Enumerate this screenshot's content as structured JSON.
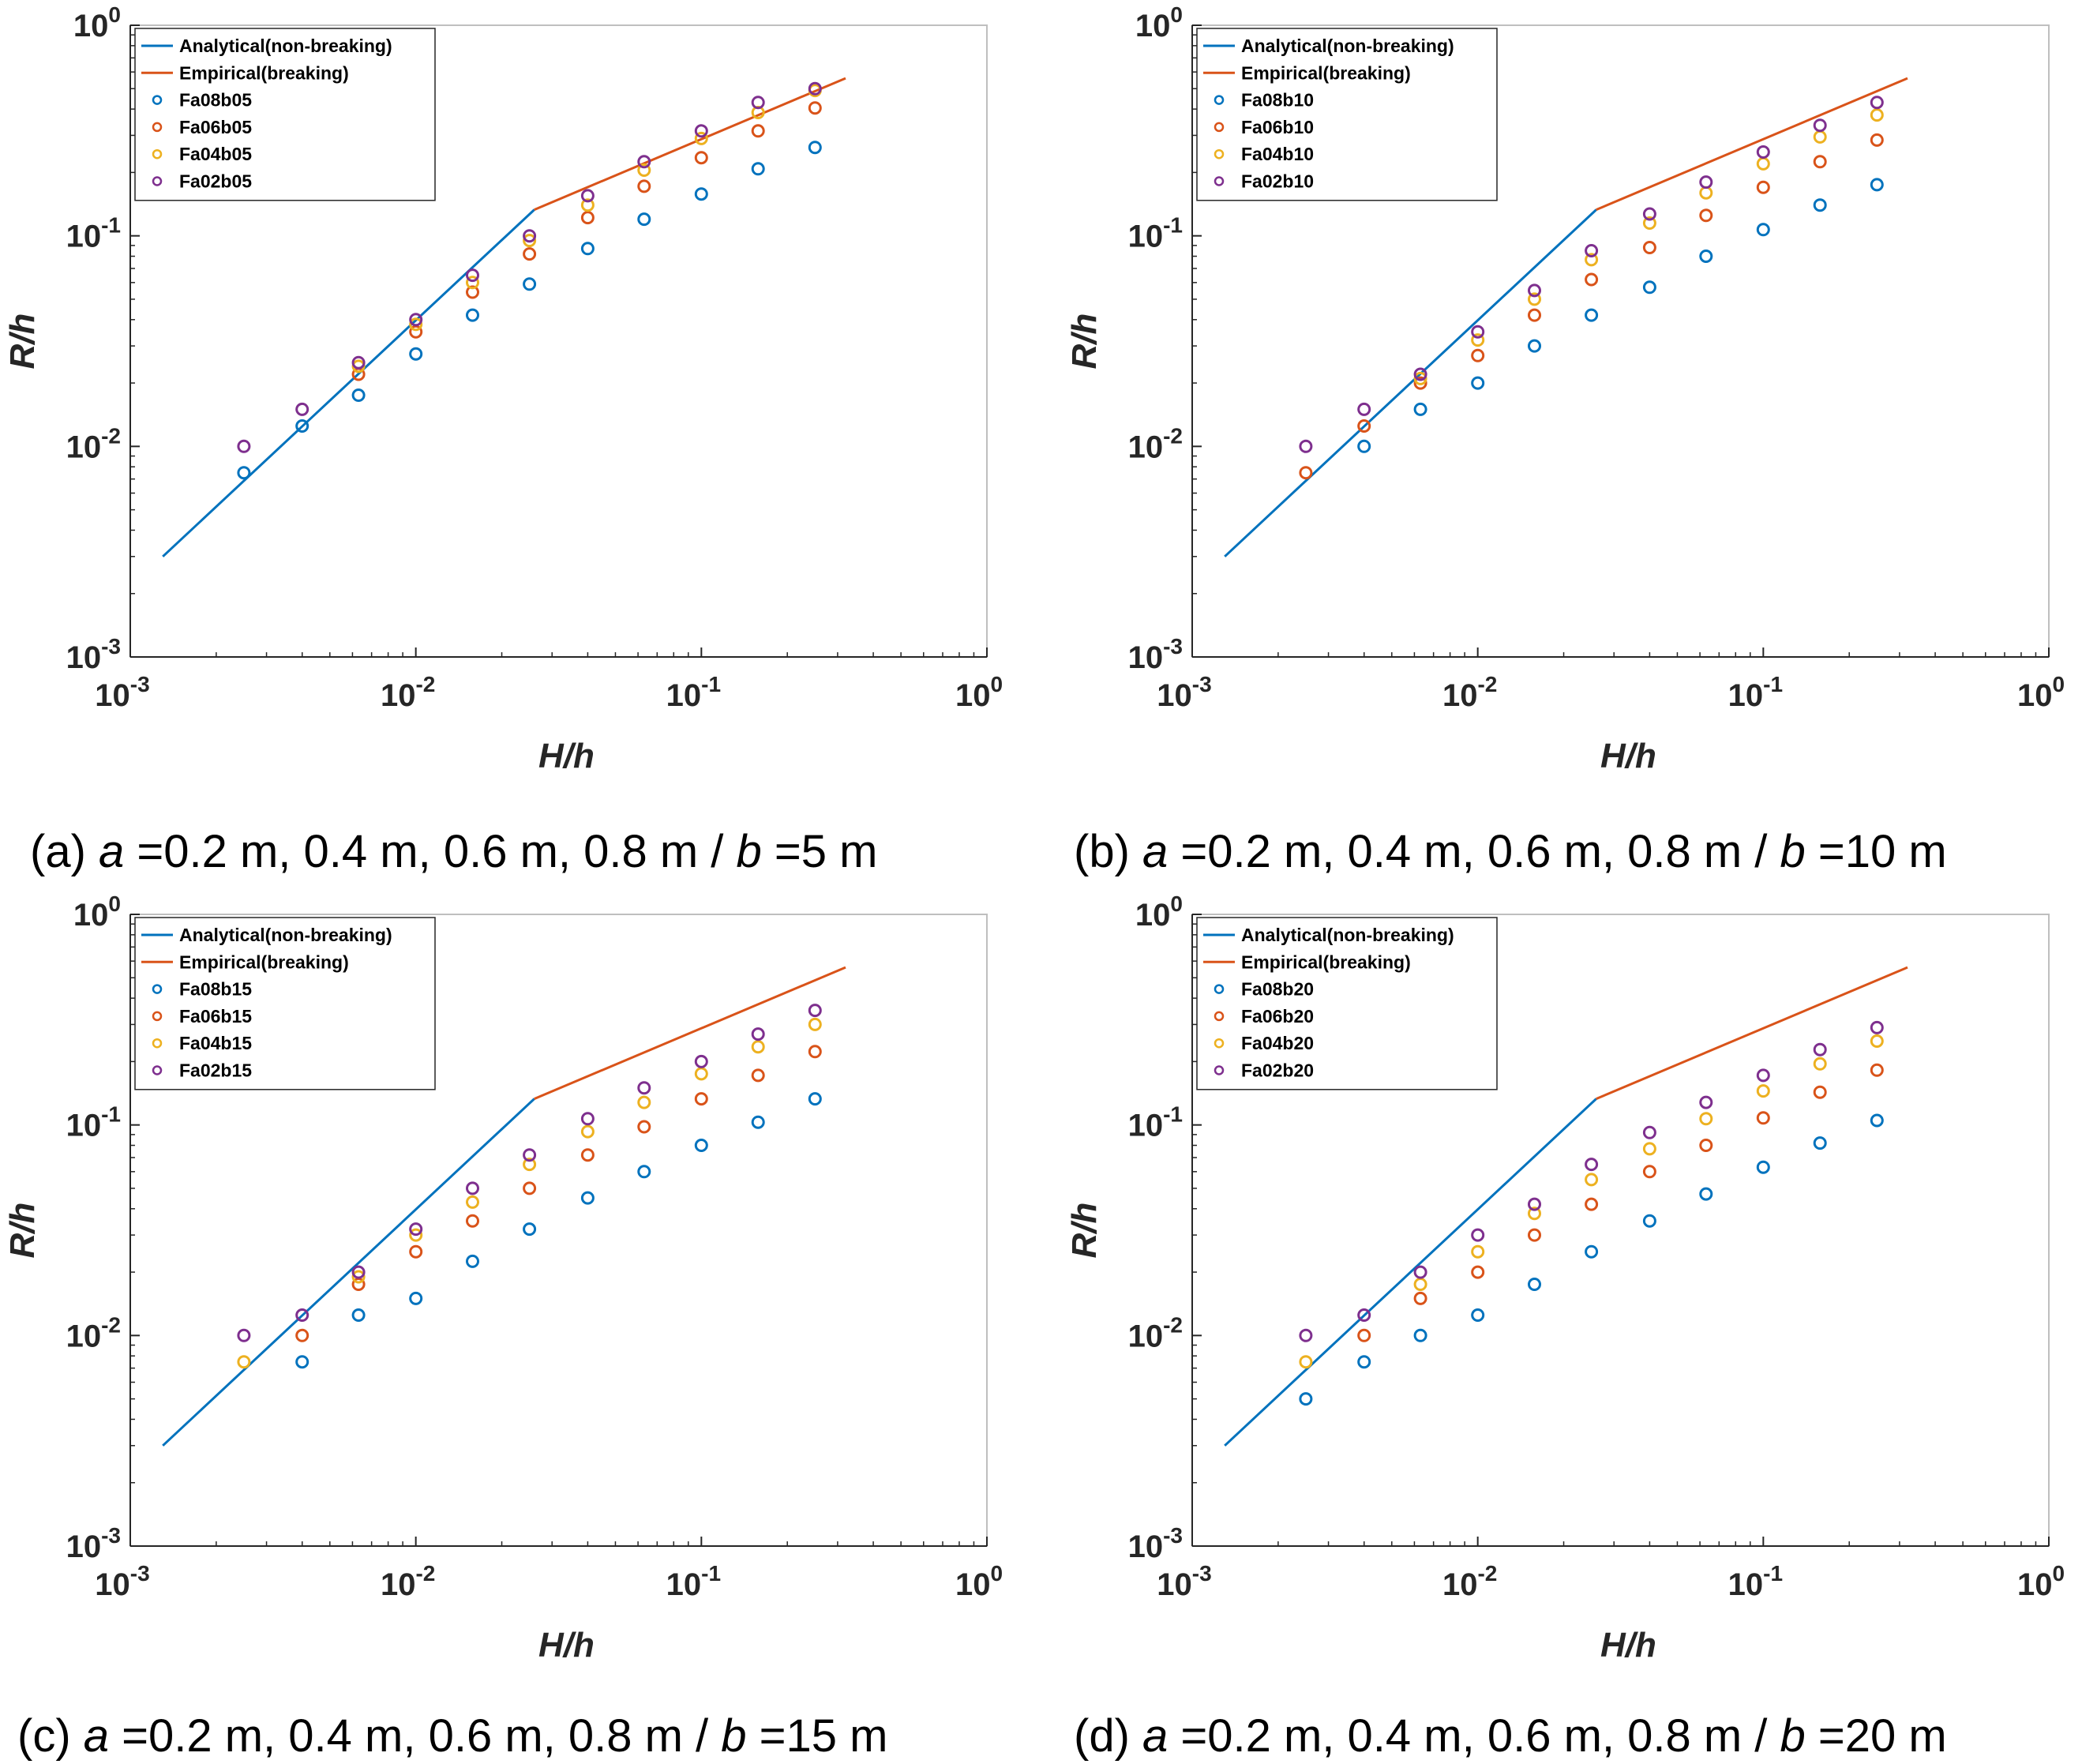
{
  "colors": {
    "analytical": "#0072BD",
    "empirical": "#D95319",
    "fa08": "#0072BD",
    "fa06": "#D95319",
    "fa04": "#EDB120",
    "fa02": "#7E2F8E",
    "axis": "#262626",
    "box": "#bfbfbf"
  },
  "chart_data": [
    {
      "type": "scatter",
      "panel": "a",
      "xscale": "log",
      "yscale": "log",
      "xlim": [
        0.001,
        1
      ],
      "ylim": [
        0.001,
        1
      ],
      "xlabel": "H/h",
      "ylabel": "R/h",
      "x_ticks": [
        "10^-3",
        "10^-2",
        "10^-1",
        "10^0"
      ],
      "y_ticks": [
        "10^-3",
        "10^-2",
        "10^-1",
        "10^0"
      ],
      "legend": "top-left",
      "caption": {
        "prefix": "(a) ",
        "a_sym": "a",
        "middle": " =0.2 m, 0.4 m, 0.6 m, 0.8 m / ",
        "b_sym": "b",
        "suffix": " =5 m"
      },
      "lines": [
        {
          "name": "Analytical(non-breaking)",
          "color_key": "analytical",
          "points": [
            [
              0.0013,
              0.003
            ],
            [
              0.026,
              0.133
            ]
          ]
        },
        {
          "name": "Empirical(breaking)",
          "color_key": "empirical",
          "points": [
            [
              0.026,
              0.133
            ],
            [
              0.32,
              0.56
            ]
          ]
        }
      ],
      "x": [
        0.0025,
        0.004,
        0.0063,
        0.01,
        0.0158,
        0.025,
        0.04,
        0.063,
        0.1,
        0.158,
        0.25
      ],
      "series": [
        {
          "name": "Fa08b05",
          "color_key": "fa08",
          "values": [
            0.0075,
            0.0125,
            0.0175,
            0.0275,
            0.042,
            0.059,
            0.087,
            0.12,
            0.158,
            0.208,
            0.263
          ]
        },
        {
          "name": "Fa06b05",
          "color_key": "fa06",
          "values": [
            null,
            null,
            0.022,
            0.035,
            0.054,
            0.082,
            0.122,
            0.172,
            0.235,
            0.315,
            0.405
          ]
        },
        {
          "name": "Fa04b05",
          "color_key": "fa04",
          "values": [
            null,
            null,
            0.024,
            0.038,
            0.06,
            0.095,
            0.14,
            0.205,
            0.29,
            0.385,
            0.49
          ]
        },
        {
          "name": "Fa02b05",
          "color_key": "fa02",
          "values": [
            0.01,
            0.015,
            0.025,
            0.04,
            0.065,
            0.1,
            0.155,
            0.225,
            0.315,
            0.43,
            0.5
          ]
        }
      ]
    },
    {
      "type": "scatter",
      "panel": "b",
      "xscale": "log",
      "yscale": "log",
      "xlim": [
        0.001,
        1
      ],
      "ylim": [
        0.001,
        1
      ],
      "xlabel": "H/h",
      "ylabel": "R/h",
      "x_ticks": [
        "10^-3",
        "10^-2",
        "10^-1",
        "10^0"
      ],
      "y_ticks": [
        "10^-3",
        "10^-2",
        "10^-1",
        "10^0"
      ],
      "legend": "top-left",
      "caption": {
        "prefix": "(b) ",
        "a_sym": "a",
        "middle": " =0.2 m, 0.4 m, 0.6 m, 0.8 m / ",
        "b_sym": "b",
        "suffix": " =10 m"
      },
      "lines": [
        {
          "name": "Analytical(non-breaking)",
          "color_key": "analytical",
          "points": [
            [
              0.0013,
              0.003
            ],
            [
              0.026,
              0.133
            ]
          ]
        },
        {
          "name": "Empirical(breaking)",
          "color_key": "empirical",
          "points": [
            [
              0.026,
              0.133
            ],
            [
              0.32,
              0.56
            ]
          ]
        }
      ],
      "x": [
        0.0025,
        0.004,
        0.0063,
        0.01,
        0.0158,
        0.025,
        0.04,
        0.063,
        0.1,
        0.158,
        0.25
      ],
      "series": [
        {
          "name": "Fa08b10",
          "color_key": "fa08",
          "values": [
            null,
            0.01,
            0.015,
            0.02,
            0.03,
            0.042,
            0.057,
            0.08,
            0.107,
            0.14,
            0.175
          ]
        },
        {
          "name": "Fa06b10",
          "color_key": "fa06",
          "values": [
            0.0075,
            0.0125,
            0.02,
            0.027,
            0.042,
            0.062,
            0.088,
            0.125,
            0.17,
            0.225,
            0.285
          ]
        },
        {
          "name": "Fa04b10",
          "color_key": "fa04",
          "values": [
            null,
            null,
            0.021,
            0.032,
            0.05,
            0.077,
            0.115,
            0.16,
            0.22,
            0.295,
            0.375
          ]
        },
        {
          "name": "Fa02b10",
          "color_key": "fa02",
          "values": [
            0.01,
            0.015,
            0.022,
            0.035,
            0.055,
            0.085,
            0.127,
            0.18,
            0.25,
            0.335,
            0.43
          ]
        }
      ]
    },
    {
      "type": "scatter",
      "panel": "c",
      "xscale": "log",
      "yscale": "log",
      "xlim": [
        0.001,
        1
      ],
      "ylim": [
        0.001,
        1
      ],
      "xlabel": "H/h",
      "ylabel": "R/h",
      "x_ticks": [
        "10^-3",
        "10^-2",
        "10^-1",
        "10^0"
      ],
      "y_ticks": [
        "10^-3",
        "10^-2",
        "10^-1",
        "10^0"
      ],
      "legend": "top-left",
      "caption": {
        "prefix": "(c) ",
        "a_sym": "a",
        "middle": " =0.2 m, 0.4 m, 0.6 m, 0.8 m / ",
        "b_sym": "b",
        "suffix": " =15 m"
      },
      "lines": [
        {
          "name": "Analytical(non-breaking)",
          "color_key": "analytical",
          "points": [
            [
              0.0013,
              0.003
            ],
            [
              0.026,
              0.133
            ]
          ]
        },
        {
          "name": "Empirical(breaking)",
          "color_key": "empirical",
          "points": [
            [
              0.026,
              0.133
            ],
            [
              0.32,
              0.56
            ]
          ]
        }
      ],
      "x": [
        0.0025,
        0.004,
        0.0063,
        0.01,
        0.0158,
        0.025,
        0.04,
        0.063,
        0.1,
        0.158,
        0.25
      ],
      "series": [
        {
          "name": "Fa08b15",
          "color_key": "fa08",
          "values": [
            null,
            0.0075,
            0.0125,
            0.015,
            0.0225,
            0.032,
            0.045,
            0.06,
            0.08,
            0.103,
            0.133
          ]
        },
        {
          "name": "Fa06b15",
          "color_key": "fa06",
          "values": [
            null,
            0.01,
            0.0175,
            0.025,
            0.035,
            0.05,
            0.072,
            0.098,
            0.133,
            0.172,
            0.223
          ]
        },
        {
          "name": "Fa04b15",
          "color_key": "fa04",
          "values": [
            0.0075,
            null,
            0.019,
            0.03,
            0.043,
            0.065,
            0.093,
            0.128,
            0.175,
            0.235,
            0.3
          ]
        },
        {
          "name": "Fa02b15",
          "color_key": "fa02",
          "values": [
            0.01,
            0.0125,
            0.02,
            0.032,
            0.05,
            0.072,
            0.107,
            0.15,
            0.2,
            0.27,
            0.35
          ]
        }
      ]
    },
    {
      "type": "scatter",
      "panel": "d",
      "xscale": "log",
      "yscale": "log",
      "xlim": [
        0.001,
        1
      ],
      "ylim": [
        0.001,
        1
      ],
      "xlabel": "H/h",
      "ylabel": "R/h",
      "x_ticks": [
        "10^-3",
        "10^-2",
        "10^-1",
        "10^0"
      ],
      "y_ticks": [
        "10^-3",
        "10^-2",
        "10^-1",
        "10^0"
      ],
      "legend": "top-left",
      "caption": {
        "prefix": "(d) ",
        "a_sym": "a",
        "middle": " =0.2 m, 0.4 m, 0.6 m, 0.8 m / ",
        "b_sym": "b",
        "suffix": " =20 m"
      },
      "lines": [
        {
          "name": "Analytical(non-breaking)",
          "color_key": "analytical",
          "points": [
            [
              0.0013,
              0.003
            ],
            [
              0.026,
              0.133
            ]
          ]
        },
        {
          "name": "Empirical(breaking)",
          "color_key": "empirical",
          "points": [
            [
              0.026,
              0.133
            ],
            [
              0.32,
              0.56
            ]
          ]
        }
      ],
      "x": [
        0.0025,
        0.004,
        0.0063,
        0.01,
        0.0158,
        0.025,
        0.04,
        0.063,
        0.1,
        0.158,
        0.25
      ],
      "series": [
        {
          "name": "Fa08b20",
          "color_key": "fa08",
          "values": [
            0.005,
            0.0075,
            0.01,
            0.0125,
            0.0175,
            0.025,
            0.035,
            0.047,
            0.063,
            0.082,
            0.105
          ]
        },
        {
          "name": "Fa06b20",
          "color_key": "fa06",
          "values": [
            null,
            0.01,
            0.015,
            0.02,
            0.03,
            0.042,
            0.06,
            0.08,
            0.108,
            0.143,
            0.182
          ]
        },
        {
          "name": "Fa04b20",
          "color_key": "fa04",
          "values": [
            0.0075,
            null,
            0.0175,
            0.025,
            0.038,
            0.055,
            0.077,
            0.107,
            0.145,
            0.195,
            0.25
          ]
        },
        {
          "name": "Fa02b20",
          "color_key": "fa02",
          "values": [
            0.01,
            0.0125,
            0.02,
            0.03,
            0.042,
            0.065,
            0.092,
            0.128,
            0.172,
            0.228,
            0.29
          ]
        }
      ]
    }
  ]
}
